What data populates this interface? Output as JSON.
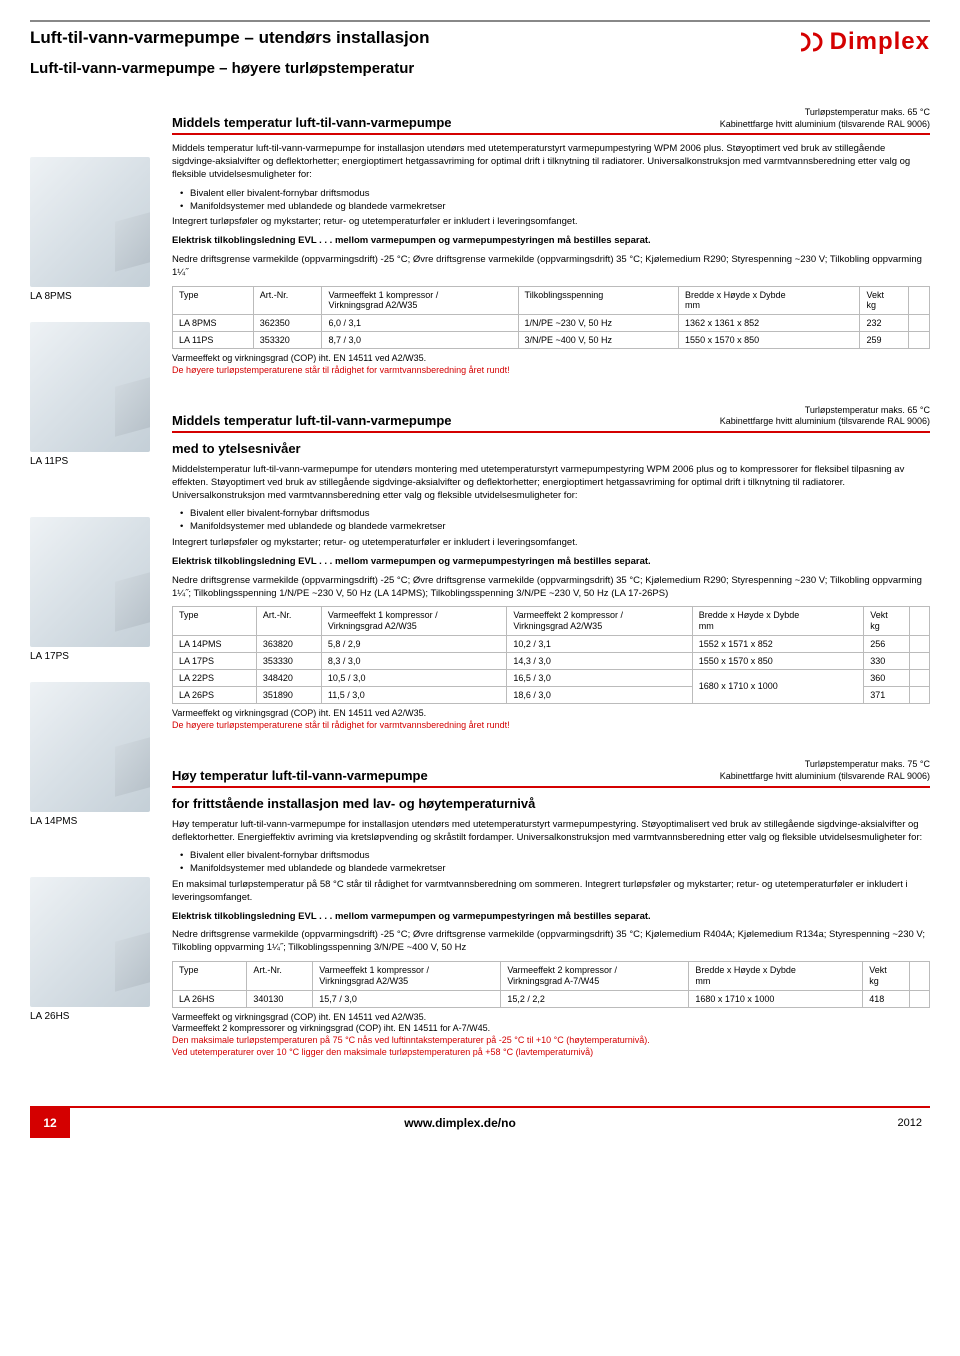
{
  "page": {
    "title": "Luft-til-vann-varmepumpe – utendørs installasjon",
    "subtitle": "Luft-til-vann-varmepumpe – høyere turløpstemperatur",
    "brand": "Dimplex"
  },
  "sidebar": {
    "items": [
      {
        "label": "LA 8PMS"
      },
      {
        "label": "LA 11PS"
      },
      {
        "label": "LA 17PS"
      },
      {
        "label": "LA 14PMS"
      },
      {
        "label": "LA 26HS"
      }
    ]
  },
  "sections": [
    {
      "title": "Middels temperatur luft-til-vann-varmepumpe",
      "meta1": "Turløpstemperatur maks. 65 °C",
      "meta2": "Kabinettfarge hvitt aluminium (tilsvarende RAL 9006)",
      "desc_intro": "Middels temperatur luft-til-vann-varmepumpe for installasjon utendørs med utetemperaturstyrt varmepumpestyring WPM 2006 plus. Støyoptimert ved bruk av stillegående sigdvinge-aksialvifter og deflektorhetter; energioptimert hetgassavriming for optimal drift i tilknytning til radiatorer. Universalkonstruksjon med varmtvannsberedning etter valg og fleksible utvidelsesmuligheter for:",
      "bullets": [
        "Bivalent eller bivalent-fornybar driftsmodus",
        "Manifoldsystemer med ublandede og blandede varmekretser"
      ],
      "post_bullets": "Integrert turløpsføler og mykstarter; retur- og utetemperaturføler er inkludert i leveringsomfanget.",
      "bold_line": "Elektrisk tilkoblingsledning EVL . . . mellom varmepumpen og varmepumpestyringen må bestilles separat.",
      "specs": "Nedre driftsgrense varmekilde (oppvarmingsdrift) -25 °C; Øvre driftsgrense varmekilde (oppvarmingsdrift) 35 °C; Kjølemedium R290; Styrespenning ~230 V; Tilkobling oppvarming 1¼˝",
      "table": {
        "headers": [
          "Type",
          "Art.-Nr.",
          "Varmeeffekt 1 kompressor /\nVirkningsgrad A2/W35",
          "Tilkoblingsspenning",
          "Bredde x Høyde x Dybde\nmm",
          "Vekt\nkg"
        ],
        "rows": [
          [
            "LA 8PMS",
            "362350",
            "6,0 / 3,1",
            "1/N/PE ~230 V, 50 Hz",
            "1362 x 1361 x 852",
            "232"
          ],
          [
            "LA 11PS",
            "353320",
            "8,7 / 3,0",
            "3/N/PE ~400 V, 50 Hz",
            "1550 x 1570 x 850",
            "259"
          ]
        ]
      },
      "footnote1": "Varmeeffekt og virkningsgrad (COP) iht. EN 14511 ved A2/W35.",
      "footnote2": "De høyere turløpstemperaturene står til rådighet for varmtvannsberedning året rundt!"
    },
    {
      "title": "Middels temperatur luft-til-vann-varmepumpe",
      "subtitle": "med to ytelsesnivåer",
      "meta1": "Turløpstemperatur maks. 65 °C",
      "meta2": "Kabinettfarge hvitt aluminium (tilsvarende RAL 9006)",
      "desc_intro": "Middelstemperatur luft-til-vann-varmepumpe for utendørs montering med utetemperaturstyrt varmepumpestyring WPM 2006 plus og to kompressorer for fleksibel tilpasning av effekten. Støyoptimert ved bruk av stillegående sigdvinge-aksialvifter og deflektorhetter; energioptimert hetgassavriming for optimal drift i tilknytning til radiatorer. Universalkonstruksjon med varmtvannsberedning etter valg og fleksible utvidelsesmuligheter for:",
      "bullets": [
        "Bivalent eller bivalent-fornybar driftsmodus",
        "Manifoldsystemer med ublandede og blandede varmekretser"
      ],
      "post_bullets": "Integrert turløpsføler og mykstarter; retur- og utetemperaturføler er inkludert i leveringsomfanget.",
      "bold_line": "Elektrisk tilkoblingsledning EVL . . . mellom varmepumpen og varmepumpestyringen må bestilles separat.",
      "specs": "Nedre driftsgrense varmekilde (oppvarmingsdrift) -25 °C; Øvre driftsgrense varmekilde (oppvarmingsdrift) 35 °C; Kjølemedium R290; Styrespenning ~230 V; Tilkobling oppvarming 1¼˝; Tilkoblingsspenning 1/N/PE ~230 V, 50 Hz (LA 14PMS); Tilkoblingsspenning 3/N/PE ~230 V, 50 Hz (LA 17-26PS)",
      "table": {
        "headers": [
          "Type",
          "Art.-Nr.",
          "Varmeeffekt 1 kompressor /\nVirkningsgrad A2/W35",
          "Varmeeffekt 2 kompressor /\nVirkningsgrad A2/W35",
          "Bredde x Høyde x Dybde\nmm",
          "Vekt\nkg"
        ],
        "rows": [
          [
            "LA 14PMS",
            "363820",
            "5,8 / 2,9",
            "10,2 / 3,1",
            "1552 x 1571 x 852",
            "256"
          ],
          [
            "LA 17PS",
            "353330",
            "8,3 / 3,0",
            "14,3 / 3,0",
            "1550 x 1570 x 850",
            "330"
          ],
          [
            "LA 22PS",
            "348420",
            "10,5 / 3,0",
            "16,5 / 3,0",
            "",
            "360"
          ],
          [
            "LA 26PS",
            "351890",
            "11,5 / 3,0",
            "18,6 / 3,0",
            "",
            "371"
          ]
        ],
        "merged_dim": "1680 x 1710 x 1000"
      },
      "footnote1": "Varmeeffekt og virkningsgrad (COP) iht. EN 14511 ved A2/W35.",
      "footnote2": "De høyere turløpstemperaturene står til rådighet for varmtvannsberedning året rundt!"
    },
    {
      "title": "Høy temperatur luft-til-vann-varmepumpe",
      "subtitle": "for frittstående installasjon med lav- og høytemperaturnivå",
      "meta1": "Turløpstemperatur maks. 75 °C",
      "meta2": "Kabinettfarge hvitt aluminium (tilsvarende RAL 9006)",
      "desc_intro": "Høy temperatur luft-til-vann-varmepumpe for installasjon utendørs med utetemperaturstyrt varmepumpestyring. Støyoptimalisert ved bruk av stillegående sigdvinge-aksialvifter og deflektorhetter. Energieffektiv avriming via kretsløpvending og skråstilt fordamper. Universalkonstruksjon med varmtvannsberedning etter valg og fleksible utvidelsesmuligheter for:",
      "bullets": [
        "Bivalent eller bivalent-fornybar driftsmodus",
        "Manifoldsystemer med ublandede og blandede varmekretser"
      ],
      "post_bullets": "En maksimal turløpstemperatur på 58 °C står til rådighet for varmtvannsberedning om sommeren. Integrert turløpsføler og mykstarter; retur- og utetemperaturføler er inkludert i leveringsomfanget.",
      "bold_line": "Elektrisk tilkoblingsledning EVL . . . mellom varmepumpen og varmepumpestyringen må bestilles separat.",
      "specs": "Nedre driftsgrense varmekilde (oppvarmingsdrift) -25 °C; Øvre driftsgrense varmekilde (oppvarmingsdrift) 35 °C; Kjølemedium R404A; Kjølemedium R134a; Styrespenning ~230 V; Tilkobling oppvarming 1¼˝; Tilkoblingsspenning 3/N/PE ~400 V, 50 Hz",
      "table": {
        "headers": [
          "Type",
          "Art.-Nr.",
          "Varmeeffekt 1 kompressor /\nVirkningsgrad A2/W35",
          "Varmeeffekt 2 kompressor /\nVirkningsgrad A-7/W45",
          "Bredde x Høyde x Dybde\nmm",
          "Vekt\nkg"
        ],
        "rows": [
          [
            "LA 26HS",
            "340130",
            "15,7 / 3,0",
            "15,2 / 2,2",
            "1680 x 1710 x 1000",
            "418"
          ]
        ]
      },
      "footnote1": "Varmeeffekt og virkningsgrad (COP) iht. EN 14511 ved A2/W35.",
      "footnote_extra": "Varmeeffekt 2 kompressorer og virkningsgrad (COP) iht. EN 14511 for A-7/W45.",
      "footnote2": "Den maksimale turløpstemperaturen på 75 °C nås ved luftinntakstemperaturer på -25 °C til +10 °C (høytemperaturnivå).",
      "footnote3": "Ved utetemperaturer over 10 °C ligger den maksimale turløpstemperaturen på +58 °C (lavtemperaturnivå)"
    }
  ],
  "footer": {
    "page": "12",
    "url": "www.dimplex.de/no",
    "year": "2012"
  }
}
